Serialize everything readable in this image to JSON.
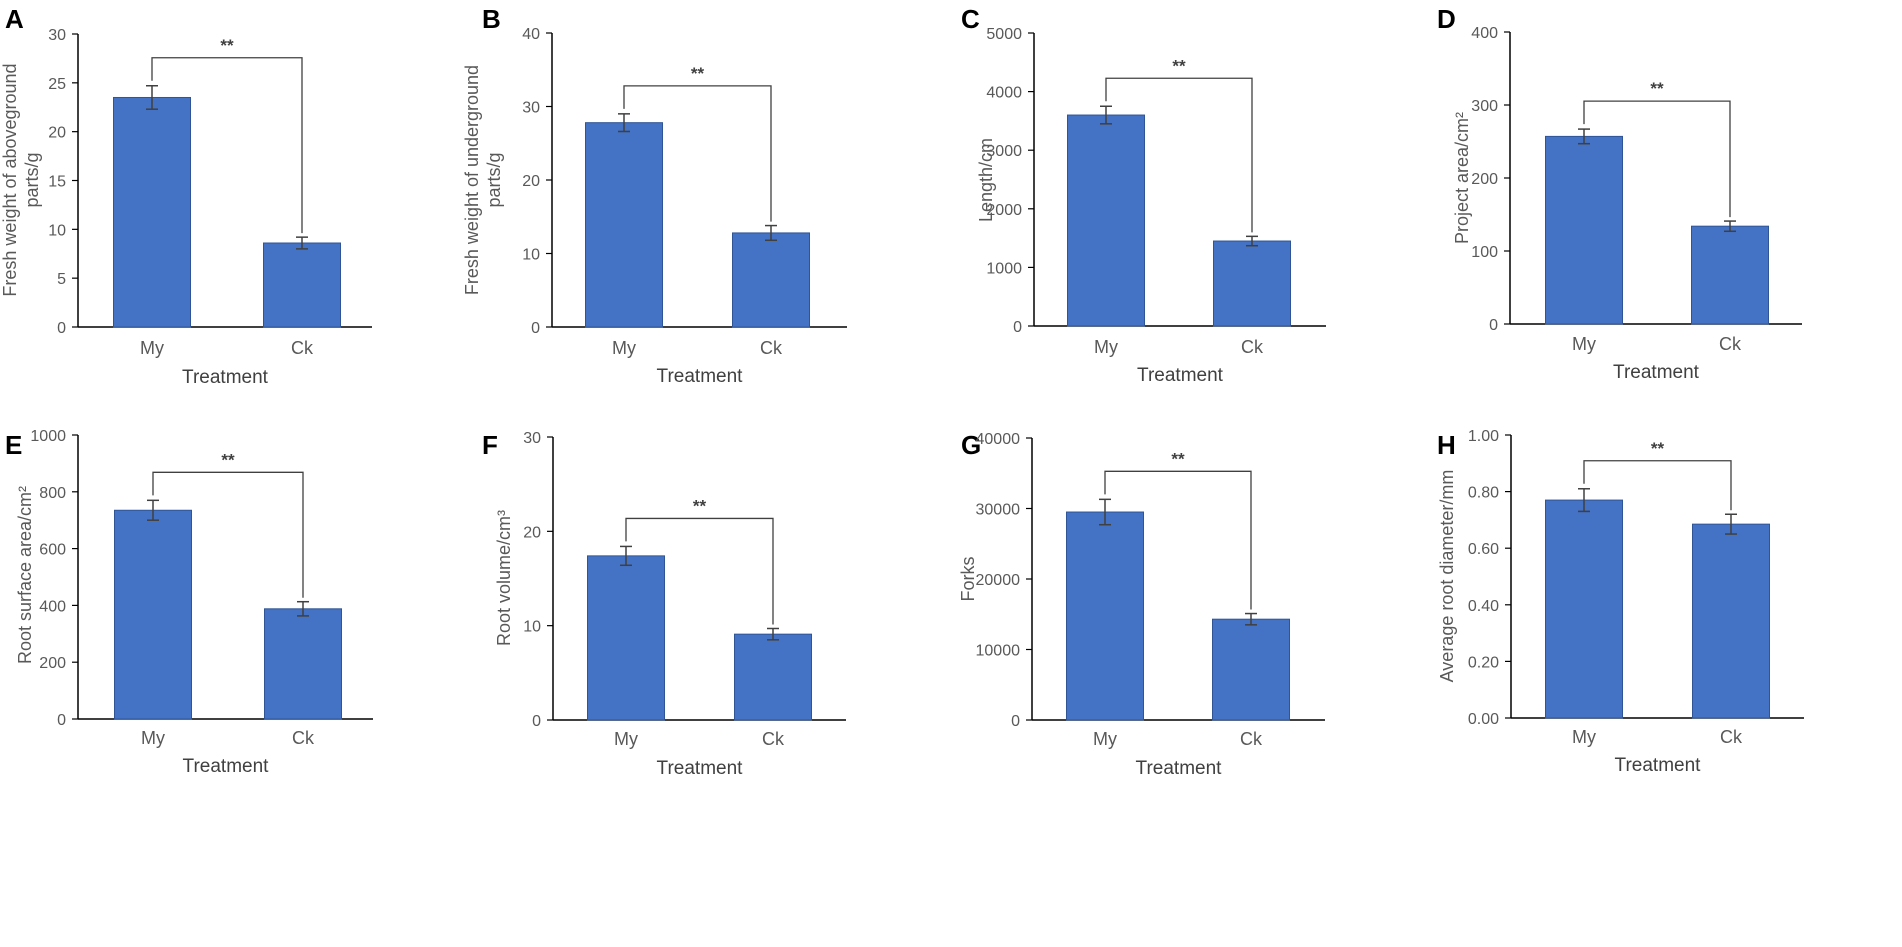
{
  "colors": {
    "bar": "#4472c4",
    "bar_edge": "#2f5597",
    "axis": "#000000",
    "error": "#404040"
  },
  "chart_data": [
    {
      "type": "bar",
      "label": "A",
      "categories": [
        "My",
        "Ck"
      ],
      "values": [
        23.5,
        8.6
      ],
      "errors": [
        1.2,
        0.6
      ],
      "ylabel": "Fresh weight of aboveground parts/g",
      "ylabel_lines": [
        "Fresh weight of aboveground",
        "parts/g"
      ],
      "xlabel": "Treatment",
      "ylim": [
        0,
        30
      ],
      "yticks": [
        "0",
        "5",
        "10",
        "15",
        "20",
        "25",
        "30"
      ],
      "significance": "**"
    },
    {
      "type": "bar",
      "label": "B",
      "categories": [
        "My",
        "Ck"
      ],
      "values": [
        27.8,
        12.8
      ],
      "errors": [
        1.2,
        1.0
      ],
      "ylabel": "Fresh weight of underground parts/g",
      "ylabel_lines": [
        "Fresh weight of underground",
        "parts/g"
      ],
      "xlabel": "Treatment",
      "ylim": [
        0,
        40
      ],
      "yticks": [
        "0",
        "10",
        "20",
        "30",
        "40"
      ],
      "significance": "**"
    },
    {
      "type": "bar",
      "label": "C",
      "categories": [
        "My",
        "Ck"
      ],
      "values": [
        3600,
        1450
      ],
      "errors": [
        150,
        80
      ],
      "ylabel": "Length/cm",
      "ylabel_lines": [
        "Length/cm"
      ],
      "xlabel": "Treatment",
      "ylim": [
        0,
        5000
      ],
      "yticks": [
        "0",
        "1000",
        "2000",
        "3000",
        "4000",
        "5000"
      ],
      "significance": "**"
    },
    {
      "type": "bar",
      "label": "D",
      "categories": [
        "My",
        "Ck"
      ],
      "values": [
        257,
        134
      ],
      "errors": [
        10,
        7
      ],
      "ylabel": "Project area/cm²",
      "ylabel_lines": [
        "Project area/cm²"
      ],
      "xlabel": "Treatment",
      "ylim": [
        0,
        400
      ],
      "yticks": [
        "0",
        "100",
        "200",
        "300",
        "400"
      ],
      "significance": "**"
    },
    {
      "type": "bar",
      "label": "E",
      "categories": [
        "My",
        "Ck"
      ],
      "values": [
        735,
        388
      ],
      "errors": [
        35,
        25
      ],
      "ylabel": "Root surface area/cm²",
      "ylabel_lines": [
        "Root surface area/cm²"
      ],
      "xlabel": "Treatment",
      "ylim": [
        0,
        1000
      ],
      "yticks": [
        "0",
        "200",
        "400",
        "600",
        "800",
        "1000"
      ],
      "significance": "**"
    },
    {
      "type": "bar",
      "label": "F",
      "categories": [
        "My",
        "Ck"
      ],
      "values": [
        17.4,
        9.1
      ],
      "errors": [
        1.0,
        0.6
      ],
      "ylabel": "Root volume/cm³",
      "ylabel_lines": [
        "Root volume/cm³"
      ],
      "xlabel": "Treatment",
      "ylim": [
        0,
        30
      ],
      "yticks": [
        "0",
        "10",
        "20",
        "30"
      ],
      "significance": "**"
    },
    {
      "type": "bar",
      "label": "G",
      "categories": [
        "My",
        "Ck"
      ],
      "values": [
        29500,
        14300
      ],
      "errors": [
        1800,
        800
      ],
      "ylabel": "Forks",
      "ylabel_lines": [
        "Forks"
      ],
      "xlabel": "Treatment",
      "ylim": [
        0,
        40000
      ],
      "yticks": [
        "0",
        "10000",
        "20000",
        "30000",
        "40000"
      ],
      "significance": "**"
    },
    {
      "type": "bar",
      "label": "H",
      "categories": [
        "My",
        "Ck"
      ],
      "values": [
        0.77,
        0.685
      ],
      "errors": [
        0.04,
        0.035
      ],
      "ylabel": "Average root diameter/mm",
      "ylabel_lines": [
        "Average root diameter/mm"
      ],
      "xlabel": "Treatment",
      "ylim": [
        0,
        1
      ],
      "yticks": [
        "0.00",
        "0.20",
        "0.40",
        "0.60",
        "0.80",
        "1.00"
      ],
      "significance": "**"
    }
  ]
}
